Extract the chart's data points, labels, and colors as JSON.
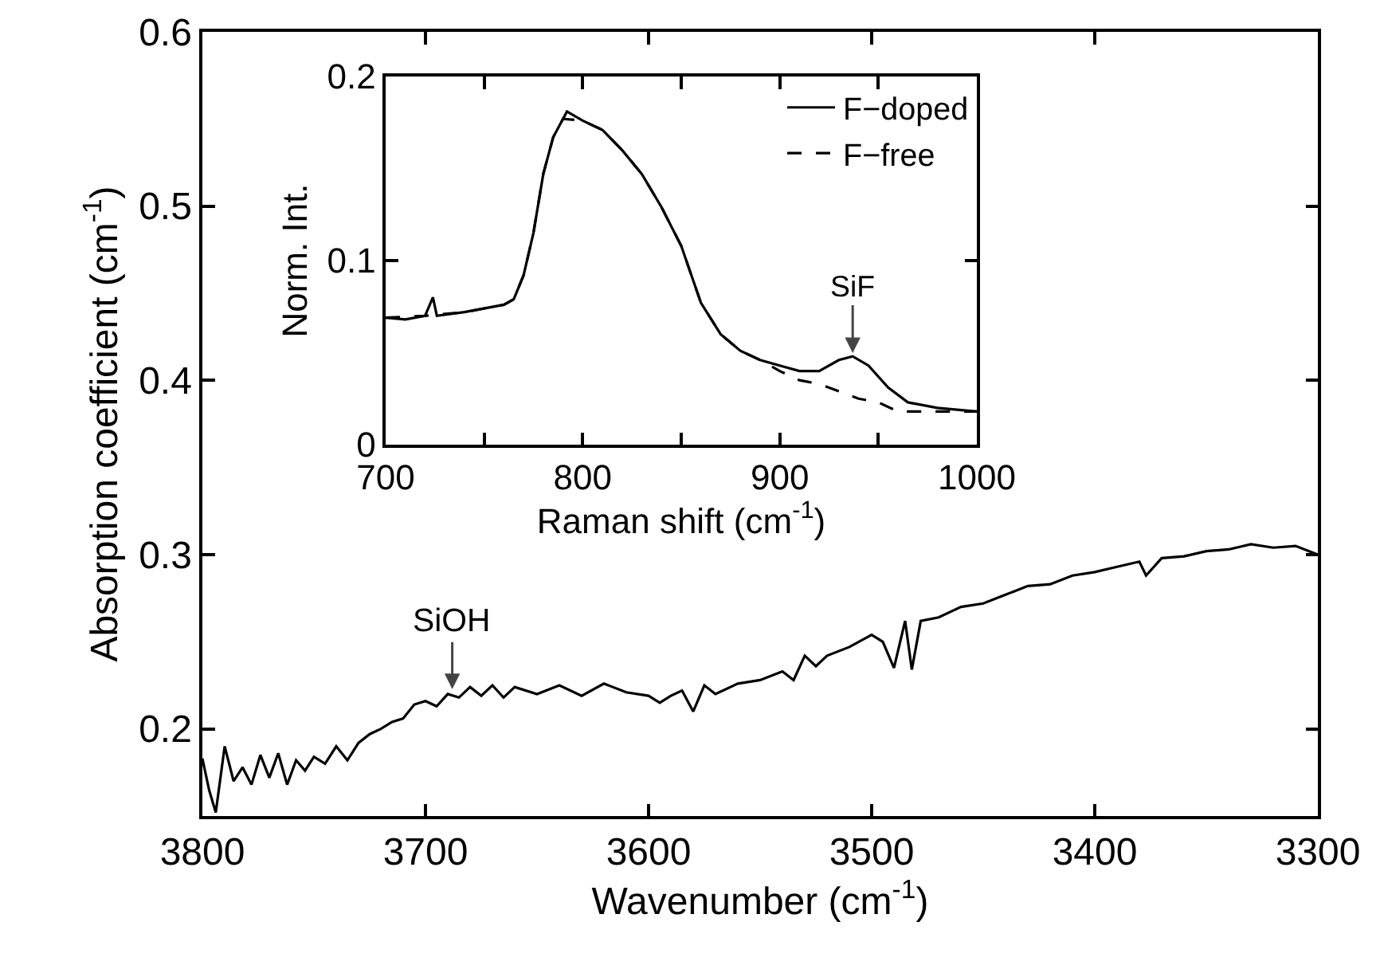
{
  "chart_data": [
    {
      "type": "line",
      "xlabel": "Wavenumber (cm$^{-1}$)",
      "ylabel": "Absorption coefficient (cm$^{-1}$)",
      "xlim": [
        3800,
        3300
      ],
      "ylim": [
        0.15,
        0.6
      ],
      "xticks": [
        3800,
        3700,
        3600,
        3500,
        3400,
        3300
      ],
      "yticks": [
        0.2,
        0.3,
        0.4,
        0.5,
        0.6
      ],
      "line_style": "solid",
      "annotations": [
        {
          "text": "SiOH",
          "x": 3688,
          "y": 0.221
        }
      ],
      "series": [
        {
          "color": "#000000",
          "x": [
            3800,
            3797,
            3794,
            3790,
            3786,
            3782,
            3778,
            3774,
            3770,
            3766,
            3762,
            3758,
            3754,
            3750,
            3745,
            3740,
            3735,
            3730,
            3725,
            3720,
            3715,
            3710,
            3705,
            3700,
            3695,
            3690,
            3685,
            3680,
            3675,
            3670,
            3665,
            3660,
            3650,
            3640,
            3630,
            3620,
            3610,
            3600,
            3595,
            3590,
            3585,
            3580,
            3575,
            3570,
            3560,
            3550,
            3540,
            3535,
            3530,
            3525,
            3520,
            3510,
            3500,
            3495,
            3490,
            3485,
            3482,
            3478,
            3470,
            3460,
            3450,
            3440,
            3430,
            3420,
            3410,
            3400,
            3390,
            3380,
            3377,
            3370,
            3360,
            3350,
            3340,
            3330,
            3320,
            3310,
            3300
          ],
          "values": [
            0.183,
            0.165,
            0.152,
            0.19,
            0.17,
            0.178,
            0.168,
            0.185,
            0.172,
            0.186,
            0.168,
            0.182,
            0.176,
            0.184,
            0.18,
            0.19,
            0.182,
            0.192,
            0.197,
            0.2,
            0.204,
            0.206,
            0.214,
            0.216,
            0.213,
            0.22,
            0.218,
            0.224,
            0.219,
            0.225,
            0.218,
            0.224,
            0.22,
            0.225,
            0.219,
            0.226,
            0.221,
            0.219,
            0.215,
            0.219,
            0.222,
            0.21,
            0.225,
            0.22,
            0.226,
            0.228,
            0.233,
            0.228,
            0.242,
            0.236,
            0.242,
            0.247,
            0.254,
            0.25,
            0.235,
            0.262,
            0.234,
            0.262,
            0.264,
            0.27,
            0.272,
            0.277,
            0.282,
            0.283,
            0.288,
            0.29,
            0.293,
            0.296,
            0.288,
            0.298,
            0.299,
            0.302,
            0.303,
            0.306,
            0.304,
            0.305,
            0.3
          ]
        }
      ]
    },
    {
      "type": "line",
      "xlabel": "Raman shift (cm$^{-1}$)",
      "ylabel": "Norm. Int.",
      "xlim": [
        700,
        1000
      ],
      "ylim": [
        0,
        0.2
      ],
      "xticks": [
        700,
        {
          "value": 750,
          "label": null
        },
        800,
        {
          "value": 850,
          "label": null
        },
        900,
        {
          "value": 950,
          "label": null
        },
        1000
      ],
      "yticks": [
        0,
        0.1,
        0.2
      ],
      "legend": "top right",
      "annotations": [
        {
          "text": "SiF",
          "x": 937,
          "y": 0.048
        }
      ],
      "series": [
        {
          "name": "F−doped",
          "color": "#000000",
          "line_style": "solid",
          "x": [
            700,
            710,
            720,
            724,
            726,
            740,
            760,
            765,
            770,
            775,
            780,
            785,
            790,
            792,
            800,
            810,
            820,
            830,
            840,
            850,
            860,
            870,
            880,
            890,
            900,
            910,
            920,
            930,
            937,
            945,
            955,
            965,
            980,
            1000
          ],
          "values": [
            0.069,
            0.068,
            0.07,
            0.08,
            0.07,
            0.072,
            0.076,
            0.079,
            0.092,
            0.115,
            0.147,
            0.167,
            0.177,
            0.181,
            0.176,
            0.171,
            0.16,
            0.147,
            0.129,
            0.108,
            0.077,
            0.06,
            0.051,
            0.046,
            0.043,
            0.04,
            0.04,
            0.046,
            0.048,
            0.043,
            0.031,
            0.023,
            0.02,
            0.018
          ]
        },
        {
          "name": "F−free",
          "color": "#000000",
          "line_style": "dashed",
          "x": [
            700,
            720,
            740,
            760,
            765,
            770,
            775,
            780,
            785,
            790,
            800,
            810,
            820,
            830,
            840,
            850,
            860,
            870,
            880,
            890,
            900,
            910,
            920,
            930,
            940,
            950,
            960,
            980,
            1000
          ],
          "values": [
            0.069,
            0.07,
            0.072,
            0.076,
            0.079,
            0.092,
            0.115,
            0.147,
            0.167,
            0.177,
            0.176,
            0.171,
            0.16,
            0.147,
            0.129,
            0.108,
            0.077,
            0.06,
            0.051,
            0.046,
            0.04,
            0.035,
            0.033,
            0.029,
            0.025,
            0.023,
            0.018,
            0.018,
            0.018
          ]
        }
      ]
    }
  ]
}
